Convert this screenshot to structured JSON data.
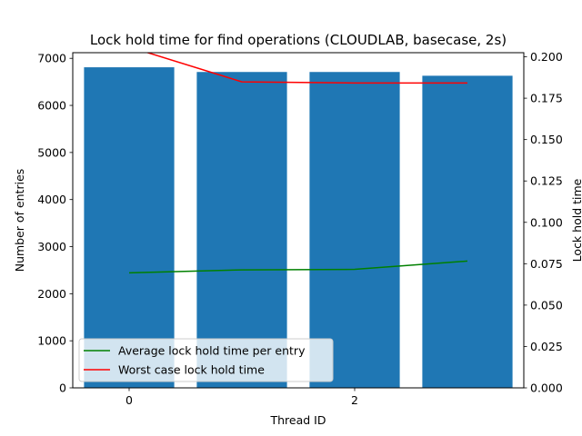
{
  "chart_data": {
    "type": "bar",
    "title": "Lock hold time for find operations (CLOUDLAB, basecase, 2s)",
    "xlabel": "Thread ID",
    "ylabel": "Number of entries",
    "y2label": "Lock hold time",
    "x": [
      0,
      1,
      2,
      3
    ],
    "xticks": [
      "0",
      "2"
    ],
    "xtick_values": [
      0,
      2
    ],
    "ylim": [
      0,
      7120
    ],
    "yticks": [
      "0",
      "1000",
      "2000",
      "3000",
      "4000",
      "5000",
      "6000",
      "7000"
    ],
    "ytick_values": [
      0,
      1000,
      2000,
      3000,
      4000,
      5000,
      6000,
      7000
    ],
    "y2lim": [
      0,
      0.2025
    ],
    "y2ticks": [
      "0.000",
      "0.025",
      "0.050",
      "0.075",
      "0.100",
      "0.125",
      "0.150",
      "0.175",
      "0.200"
    ],
    "y2tick_values": [
      0,
      0.025,
      0.05,
      0.075,
      0.1,
      0.125,
      0.15,
      0.175,
      0.2
    ],
    "bars": {
      "values": [
        6810,
        6710,
        6710,
        6630
      ],
      "color": "#1f77b4"
    },
    "series": [
      {
        "name": "Average lock hold time per entry",
        "axis": "right",
        "color": "#008000",
        "values": [
          0.0695,
          0.0713,
          0.0716,
          0.0766
        ]
      },
      {
        "name": "Worst case lock hold time",
        "axis": "right",
        "color": "#ff0000",
        "values": [
          0.206,
          0.1849,
          0.1842,
          0.1842
        ]
      }
    ],
    "legend_position": "lower-left",
    "grid": false
  }
}
